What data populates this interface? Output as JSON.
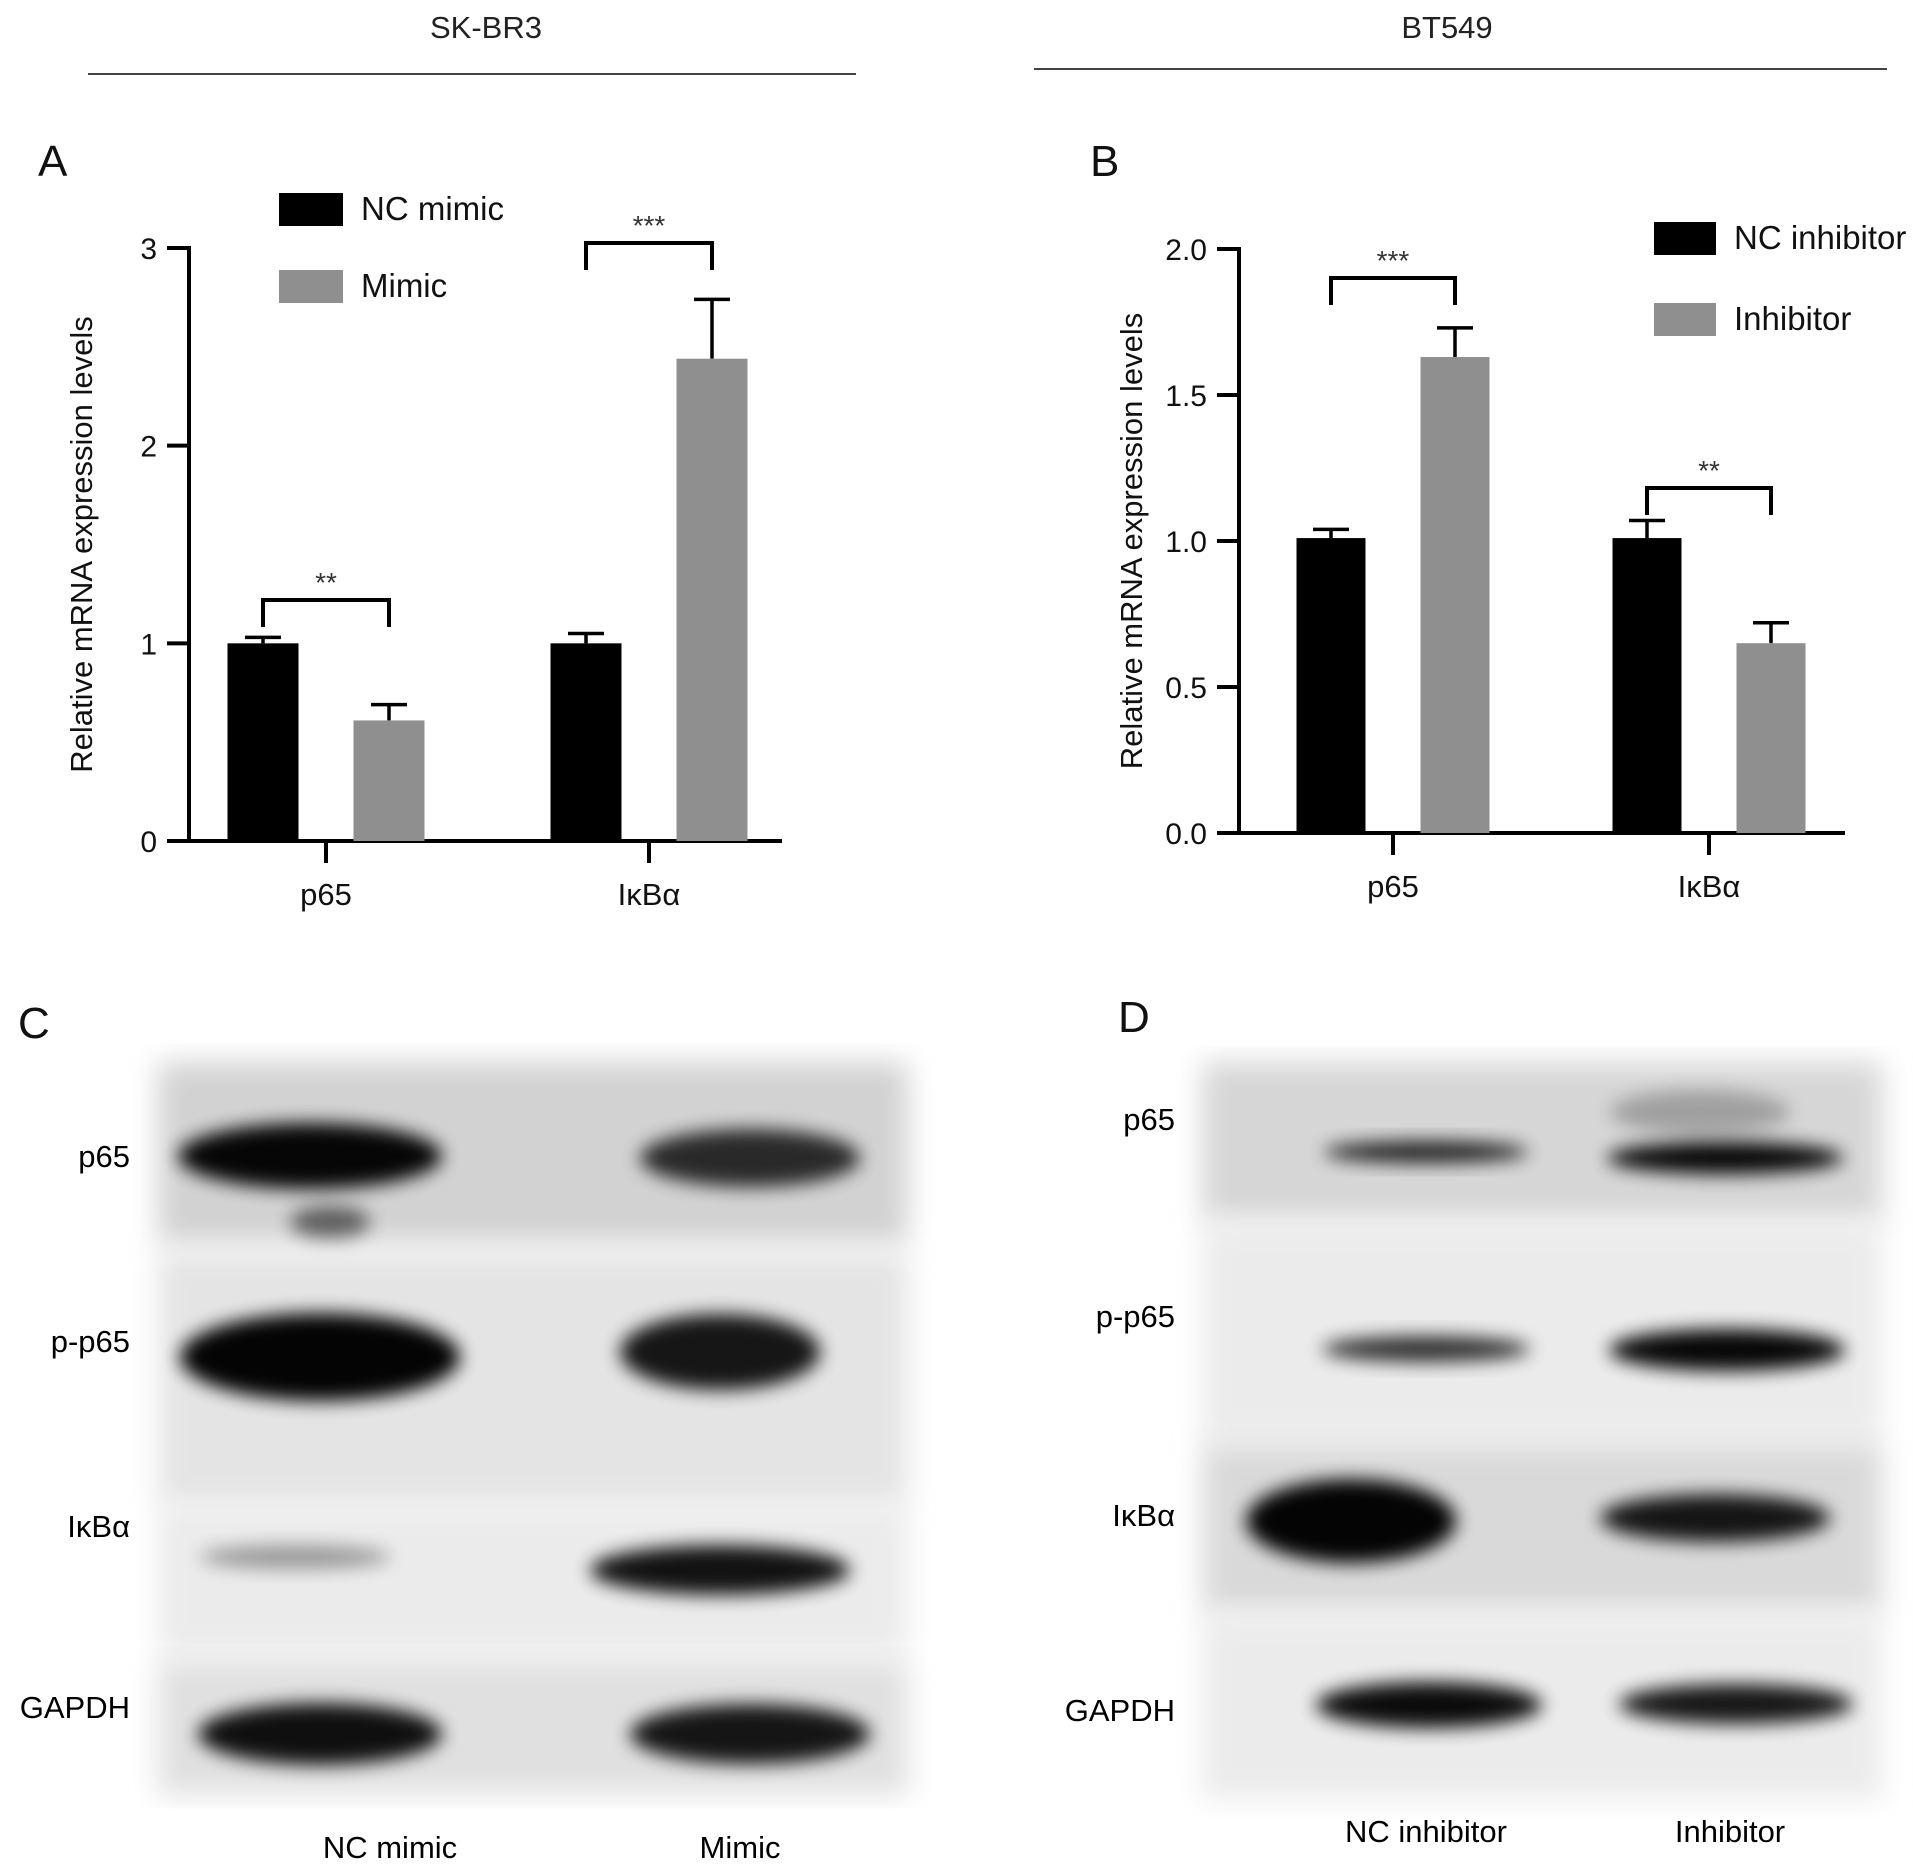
{
  "headers": {
    "left": "SK-BR3",
    "right": "BT549"
  },
  "panels": {
    "a": "A",
    "b": "B",
    "c": "C",
    "d": "D"
  },
  "colors": {
    "control": "#000000",
    "treatment": "#8f8f8f",
    "axis": "#000000"
  },
  "chart_data": [
    {
      "type": "bar",
      "categories": [
        "p65",
        "IκBα"
      ],
      "ylabel": "Relative mRNA expression levels",
      "ylim": [
        0,
        3
      ],
      "yticks": [
        "0",
        "1",
        "2",
        "3"
      ],
      "series": [
        {
          "name": "NC mimic",
          "values": [
            1.0,
            1.0
          ],
          "errors": [
            0.03,
            0.05
          ]
        },
        {
          "name": "Mimic",
          "values": [
            0.61,
            2.44
          ],
          "errors": [
            0.08,
            0.3
          ]
        }
      ],
      "significance": [
        "**",
        "***"
      ]
    },
    {
      "type": "bar",
      "categories": [
        "p65",
        "IκBα"
      ],
      "ylabel": "Relative mRNA expression levels",
      "ylim": [
        0,
        2.0
      ],
      "yticks": [
        "0.0",
        "0.5",
        "1.0",
        "1.5",
        "2.0"
      ],
      "series": [
        {
          "name": "NC inhibitor",
          "values": [
            1.01,
            1.01
          ],
          "errors": [
            0.03,
            0.06
          ]
        },
        {
          "name": "Inhibitor",
          "values": [
            1.63,
            0.65
          ],
          "errors": [
            0.1,
            0.07
          ]
        }
      ],
      "significance": [
        "***",
        "**"
      ]
    }
  ],
  "blots": {
    "c": {
      "rows": [
        "p65",
        "p-p65",
        "IκBα",
        "GAPDH"
      ],
      "lanes": [
        "NC mimic",
        "Mimic"
      ]
    },
    "d": {
      "rows": [
        "p65",
        "p-p65",
        "IκBα",
        "GAPDH"
      ],
      "lanes": [
        "NC inhibitor",
        "Inhibitor"
      ]
    }
  }
}
